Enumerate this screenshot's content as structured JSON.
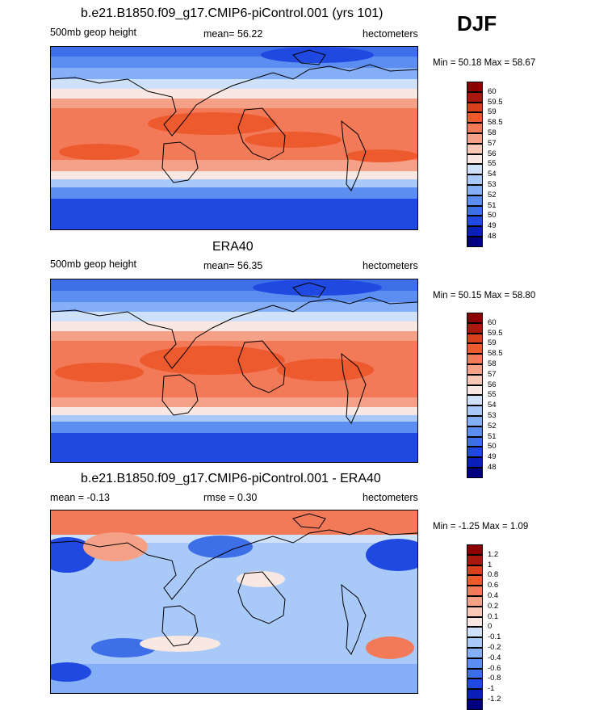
{
  "season": "DJF",
  "panels": [
    {
      "title": "b.e21.B1850.f09_g17.CMIP6-piControl.001 (yrs 101)",
      "left_label": "500mb geop height",
      "center_label": "mean=  56.22",
      "right_label": "hectometers",
      "minmax": "Min =  50.18 Max =  58.67"
    },
    {
      "title": "ERA40",
      "left_label": "500mb geop height",
      "center_label": "mean=  56.35",
      "right_label": "hectometers",
      "minmax": "Min =  50.15 Max =  58.80"
    },
    {
      "title": "b.e21.B1850.f09_g17.CMIP6-piControl.001 - ERA40",
      "left_label": "mean =  -0.13",
      "center_label": "rmse =   0.30",
      "right_label": "hectometers",
      "minmax": "Min =  -1.25 Max =   1.09"
    }
  ],
  "chart_data": [
    {
      "type": "heatmap",
      "title": "b.e21.B1850.f09_g17.CMIP6-piControl.001 (yrs 101)",
      "variable": "500mb geop height",
      "units": "hectometers",
      "mean": 56.22,
      "min": 50.18,
      "max": 58.67,
      "levels": [
        "48",
        "49",
        "50",
        "51",
        "52",
        "53",
        "54",
        "55",
        "56",
        "57",
        "58",
        "58.5",
        "59",
        "59.5",
        "60"
      ],
      "colors": [
        "#000080",
        "#0a1fb8",
        "#1f49e0",
        "#3d6fe8",
        "#5b8ef0",
        "#84aef6",
        "#a9c9f8",
        "#cfe1f9",
        "#f9e7e2",
        "#f8c7b6",
        "#f5a188",
        "#f27a58",
        "#ec5a2e",
        "#d9401d",
        "#a8180f",
        "#8b0000"
      ]
    },
    {
      "type": "heatmap",
      "title": "ERA40",
      "variable": "500mb geop height",
      "units": "hectometers",
      "mean": 56.35,
      "min": 50.15,
      "max": 58.8,
      "levels": [
        "48",
        "49",
        "50",
        "51",
        "52",
        "53",
        "54",
        "55",
        "56",
        "57",
        "58",
        "58.5",
        "59",
        "59.5",
        "60"
      ],
      "colors": [
        "#000080",
        "#0a1fb8",
        "#1f49e0",
        "#3d6fe8",
        "#5b8ef0",
        "#84aef6",
        "#a9c9f8",
        "#cfe1f9",
        "#f9e7e2",
        "#f8c7b6",
        "#f5a188",
        "#f27a58",
        "#ec5a2e",
        "#d9401d",
        "#a8180f",
        "#8b0000"
      ]
    },
    {
      "type": "heatmap",
      "title": "b.e21.B1850.f09_g17.CMIP6-piControl.001 - ERA40",
      "units": "hectometers",
      "mean": -0.13,
      "rmse": 0.3,
      "min": -1.25,
      "max": 1.09,
      "levels": [
        "-1.2",
        "-1",
        "-0.8",
        "-0.6",
        "-0.4",
        "-0.2",
        "-0.1",
        "0",
        "0.1",
        "0.2",
        "0.4",
        "0.6",
        "0.8",
        "1",
        "1.2"
      ],
      "colors": [
        "#000080",
        "#0a1fb8",
        "#1f49e0",
        "#3d6fe8",
        "#5b8ef0",
        "#84aef6",
        "#a9c9f8",
        "#cfe1f9",
        "#f9e7e2",
        "#f8c7b6",
        "#f5a188",
        "#f27a58",
        "#ec5a2e",
        "#d9401d",
        "#a8180f",
        "#8b0000"
      ]
    }
  ]
}
